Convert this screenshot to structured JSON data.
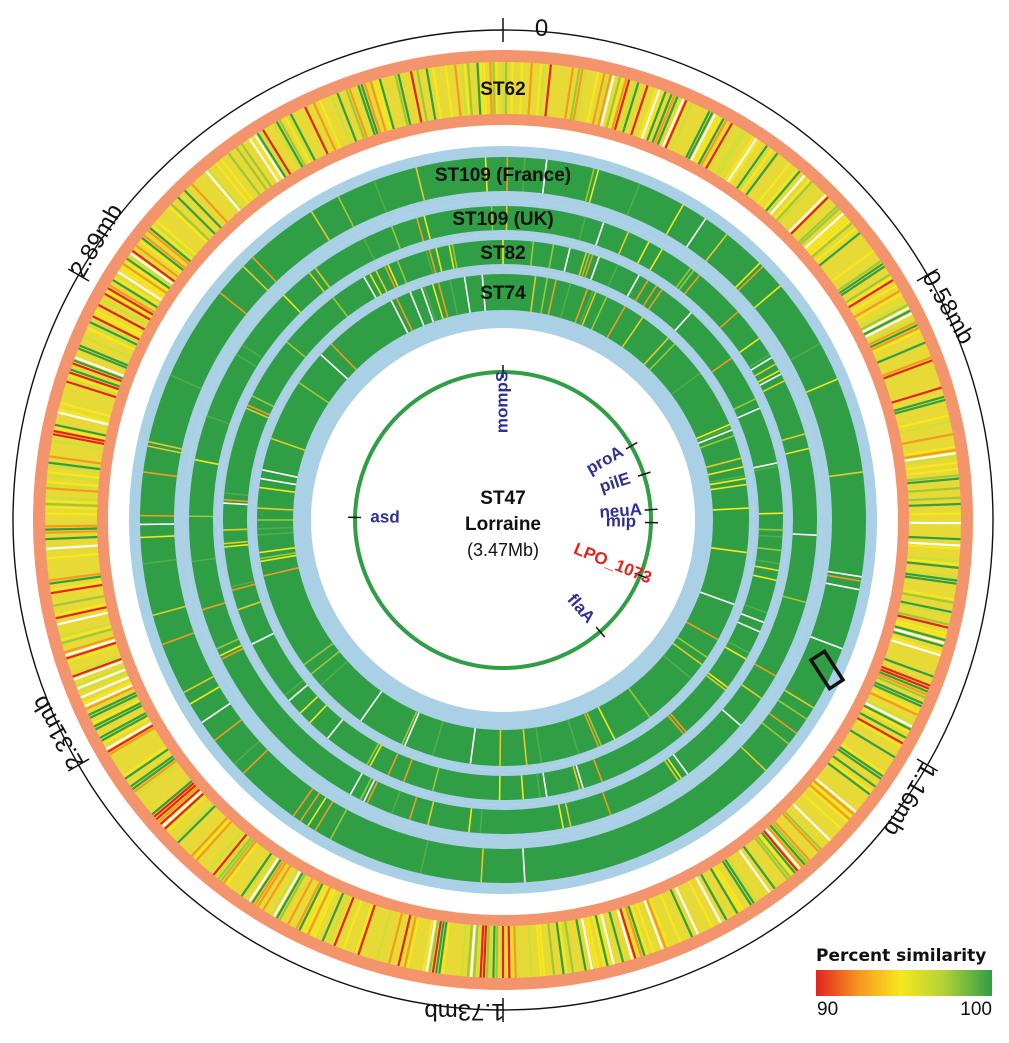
{
  "genome": {
    "center_title": "ST47",
    "center_subtitle": "Lorraine",
    "center_size": "(3.47Mb)"
  },
  "scale_ticks": [
    {
      "label": "0",
      "angle": 0
    },
    {
      "label": "0.58mb",
      "angle": 60
    },
    {
      "label": "1.16mb",
      "angle": 120
    },
    {
      "label": "1.73mb",
      "angle": 180
    },
    {
      "label": "2.31mb",
      "angle": 240
    },
    {
      "label": "2.89mb",
      "angle": 300
    }
  ],
  "rings": [
    {
      "label": "ST62",
      "track": "orange"
    },
    {
      "label": "ST109 (France)",
      "track": "blue"
    },
    {
      "label": "ST109 (UK)",
      "track": "blue"
    },
    {
      "label": "ST82",
      "track": "blue"
    },
    {
      "label": "ST74",
      "track": "blue"
    }
  ],
  "genes": [
    {
      "label": "mompS",
      "angle": 0,
      "color": "#2e3092"
    },
    {
      "label": "proA",
      "angle": 60,
      "color": "#2e3092"
    },
    {
      "label": "pilE",
      "angle": 72,
      "color": "#2e3092"
    },
    {
      "label": "neuA",
      "angle": 86,
      "color": "#2e3092"
    },
    {
      "label": "mip",
      "angle": 91,
      "color": "#2e3092"
    },
    {
      "label": "LPO_1073",
      "angle": 112,
      "color": "#e3231f"
    },
    {
      "label": "flaA",
      "angle": 139,
      "color": "#2e3092"
    },
    {
      "label": "asd",
      "angle": 271,
      "color": "#2e3092"
    }
  ],
  "legend": {
    "title": "Percent similarity",
    "min_label": "90",
    "max_label": "100"
  },
  "colors": {
    "orange_track": "#f4946c",
    "blue_track": "#a9d0e4",
    "green": "#2f9e44",
    "yellow": "#f7e71d",
    "red": "#e3231f",
    "genome_circle": "#2f9e44"
  }
}
